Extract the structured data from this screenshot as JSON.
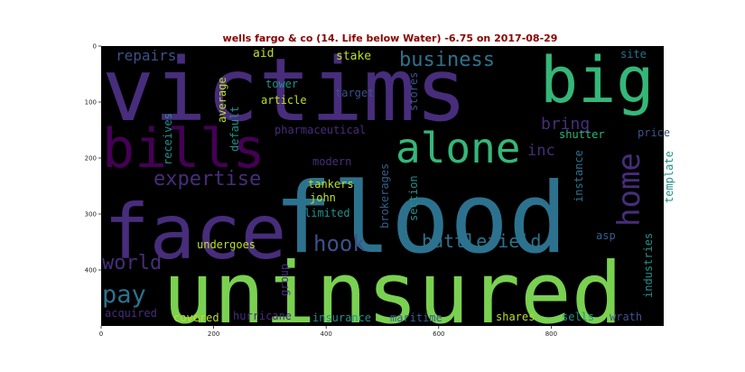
{
  "chart_data": {
    "type": "wordcloud",
    "title": "wells fargo & co (14. Life below Water) -6.75 on 2017-08-29",
    "image_width": 1000,
    "image_height": 500,
    "x_ticks": [
      "0",
      "200",
      "400",
      "600",
      "800"
    ],
    "y_ticks": [
      "0",
      "100",
      "200",
      "300",
      "400"
    ],
    "x_tick_values": [
      0,
      200,
      400,
      600,
      800
    ],
    "y_tick_values": [
      0,
      100,
      200,
      300,
      400
    ],
    "colors": {
      "background": "#000000",
      "title": "#8b0000",
      "lime": "#7ad151",
      "green": "#35b779",
      "teal": "#21918c",
      "steel": "#2c728e",
      "blue": "#3b528b",
      "indigo": "#472d7b",
      "purple": "#440154",
      "yellow": "#bddf26",
      "mint": "#2fb47c",
      "slate": "#355f8d"
    },
    "words": [
      {
        "text": "victims",
        "color": "indigo"
      },
      {
        "text": "uninsured",
        "color": "lime"
      },
      {
        "text": "flood",
        "color": "steel"
      },
      {
        "text": "face",
        "color": "indigo"
      },
      {
        "text": "big",
        "color": "green"
      },
      {
        "text": "bills",
        "color": "purple"
      },
      {
        "text": "alone",
        "color": "green"
      },
      {
        "text": "hook",
        "color": "blue"
      },
      {
        "text": "battlefield",
        "color": "steel"
      },
      {
        "text": "home",
        "color": "indigo"
      },
      {
        "text": "business",
        "color": "steel"
      },
      {
        "text": "bring",
        "color": "indigo"
      },
      {
        "text": "expertise",
        "color": "indigo"
      },
      {
        "text": "pay",
        "color": "steel"
      },
      {
        "text": "world",
        "color": "indigo"
      },
      {
        "text": "repairs",
        "color": "blue"
      },
      {
        "text": "inc",
        "color": "indigo"
      },
      {
        "text": "undergoes",
        "color": "yellow"
      },
      {
        "text": "aid",
        "color": "yellow"
      },
      {
        "text": "stake",
        "color": "yellow"
      },
      {
        "text": "site",
        "color": "steel"
      },
      {
        "text": "tower",
        "color": "teal"
      },
      {
        "text": "target",
        "color": "blue"
      },
      {
        "text": "article",
        "color": "yellow"
      },
      {
        "text": "average",
        "color": "yellow"
      },
      {
        "text": "default",
        "color": "teal"
      },
      {
        "text": "receives",
        "color": "teal"
      },
      {
        "text": "stores",
        "color": "blue"
      },
      {
        "text": "pharmaceutical",
        "color": "indigo"
      },
      {
        "text": "shutter",
        "color": "mint"
      },
      {
        "text": "price",
        "color": "blue"
      },
      {
        "text": "instance",
        "color": "steel"
      },
      {
        "text": "template",
        "color": "teal"
      },
      {
        "text": "modern",
        "color": "indigo"
      },
      {
        "text": "tankers",
        "color": "yellow"
      },
      {
        "text": "john",
        "color": "yellow"
      },
      {
        "text": "limited",
        "color": "teal"
      },
      {
        "text": "brokerages",
        "color": "slate"
      },
      {
        "text": "section",
        "color": "teal"
      },
      {
        "text": "asp",
        "color": "slate"
      },
      {
        "text": "industries",
        "color": "teal"
      },
      {
        "text": "group",
        "color": "indigo"
      },
      {
        "text": "acquired",
        "color": "indigo"
      },
      {
        "text": "covered",
        "color": "yellow"
      },
      {
        "text": "hurricane",
        "color": "indigo"
      },
      {
        "text": "insurance",
        "color": "teal"
      },
      {
        "text": "maritime",
        "color": "slate"
      },
      {
        "text": "shares",
        "color": "yellow"
      },
      {
        "text": "sells",
        "color": "teal"
      },
      {
        "text": "wrath",
        "color": "blue"
      }
    ]
  }
}
